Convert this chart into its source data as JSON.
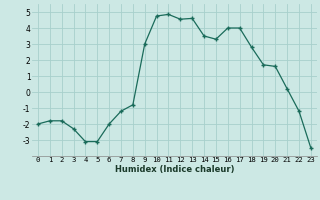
{
  "x": [
    0,
    1,
    2,
    3,
    4,
    5,
    6,
    7,
    8,
    9,
    10,
    11,
    12,
    13,
    14,
    15,
    16,
    17,
    18,
    19,
    20,
    21,
    22,
    23
  ],
  "y": [
    -2.0,
    -1.8,
    -1.8,
    -2.3,
    -3.1,
    -3.1,
    -2.0,
    -1.2,
    -0.8,
    3.0,
    4.75,
    4.85,
    4.55,
    4.6,
    3.5,
    3.3,
    4.0,
    4.0,
    2.8,
    1.7,
    1.6,
    0.2,
    -1.2,
    -3.5
  ],
  "xlabel": "Humidex (Indice chaleur)",
  "xlim": [
    -0.5,
    23.5
  ],
  "ylim": [
    -4,
    5.5
  ],
  "bg_color": "#cce8e4",
  "grid_color": "#a8d0cc",
  "line_color": "#1a6b5a",
  "marker_color": "#1a6b5a",
  "xtick_labels": [
    "0",
    "1",
    "2",
    "3",
    "4",
    "5",
    "6",
    "7",
    "8",
    "9",
    "10",
    "11",
    "12",
    "13",
    "14",
    "15",
    "16",
    "17",
    "18",
    "19",
    "20",
    "21",
    "22",
    "23"
  ],
  "yticks": [
    -3,
    -2,
    -1,
    0,
    1,
    2,
    3,
    4,
    5
  ],
  "xlabel_color": "#1a3a2a",
  "xlabel_fontsize": 6.0,
  "tick_fontsize": 5.2
}
